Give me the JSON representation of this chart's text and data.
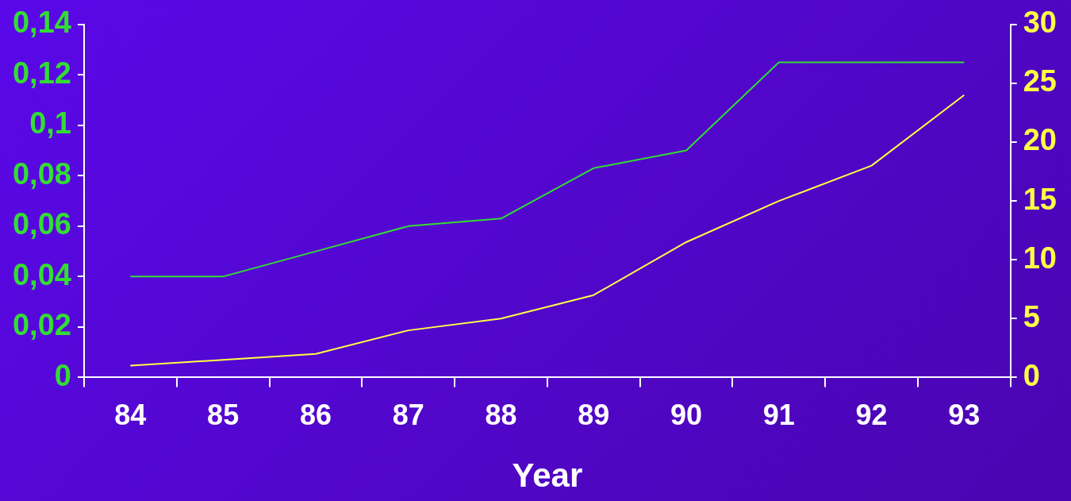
{
  "chart_data": {
    "type": "line",
    "xlabel": "Year",
    "categories": [
      "84",
      "85",
      "86",
      "87",
      "88",
      "89",
      "90",
      "91",
      "92",
      "93"
    ],
    "series": [
      {
        "color": "#33dd33",
        "values": [
          0.04,
          0.04,
          0.05,
          0.06,
          0.063,
          0.083,
          0.09,
          0.125,
          0.125,
          0.125
        ]
      },
      {
        "color": "#ffff44",
        "axis": "y2",
        "values": [
          1,
          1.5,
          2,
          4,
          5,
          7,
          11.5,
          15,
          18,
          24
        ]
      }
    ],
    "ylim": [
      0,
      0.14
    ],
    "yticks": [
      {
        "value": 0,
        "label": "0"
      },
      {
        "value": 0.02,
        "label": "0,02"
      },
      {
        "value": 0.04,
        "label": "0,04"
      },
      {
        "value": 0.06,
        "label": "0,06"
      },
      {
        "value": 0.08,
        "label": "0,08"
      },
      {
        "value": 0.1,
        "label": "0,1"
      },
      {
        "value": 0.12,
        "label": "0,12"
      },
      {
        "value": 0.14,
        "label": "0,14"
      }
    ],
    "y2lim": [
      0,
      30
    ],
    "y2ticks": [
      0,
      5,
      10,
      15,
      20,
      25,
      30
    ],
    "grid": false,
    "legend": false,
    "marker": "none",
    "line_style": "solid"
  }
}
